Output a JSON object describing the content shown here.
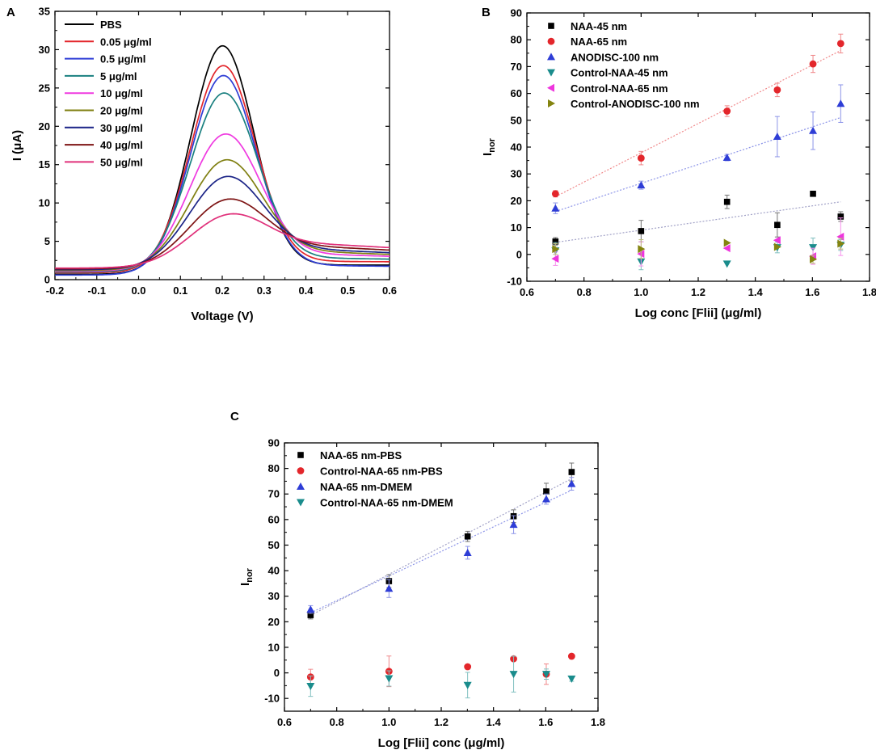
{
  "chart_data": [
    {
      "panel": "A",
      "type": "line",
      "xlabel": "Voltage (V)",
      "ylabel": "I (μA)",
      "xlim": [
        -0.2,
        0.6
      ],
      "ylim": [
        0,
        35
      ],
      "xticks": [
        -0.2,
        -0.1,
        0.0,
        0.1,
        0.2,
        0.3,
        0.4,
        0.5,
        0.6
      ],
      "xtick_labels": [
        "-0.2",
        "-0.1",
        "0.0",
        "0.1",
        "0.2",
        "0.3",
        "0.4",
        "0.5",
        "0.6"
      ],
      "yticks": [
        0,
        5,
        10,
        15,
        20,
        25,
        30,
        35
      ],
      "ytick_labels": [
        "0",
        "5",
        "10",
        "15",
        "20",
        "25",
        "30",
        "35"
      ],
      "legend_position": "top-left",
      "series": [
        {
          "name": "PBS",
          "color": "#000000",
          "peak": 30.5,
          "start": 0.7,
          "end": 1.9
        },
        {
          "name": "0.05 μg/ml",
          "color": "#e3262b",
          "peak": 27.9,
          "start": 0.9,
          "end": 2.3
        },
        {
          "name": "0.5 μg/ml",
          "color": "#2e3dd6",
          "peak": 26.6,
          "start": 0.6,
          "end": 1.7
        },
        {
          "name": "5 μg/ml",
          "color": "#1a8080",
          "peak": 24.3,
          "start": 1.0,
          "end": 2.6
        },
        {
          "name": "10 μg/ml",
          "color": "#ef3ae0",
          "peak": 18.9,
          "start": 1.1,
          "end": 2.9
        },
        {
          "name": "20 μg/ml",
          "color": "#808012",
          "peak": 15.5,
          "start": 1.2,
          "end": 3.1
        },
        {
          "name": "30 μg/ml",
          "color": "#1b2487",
          "peak": 13.3,
          "start": 1.3,
          "end": 3.3
        },
        {
          "name": "40 μg/ml",
          "color": "#7e1414",
          "peak": 10.3,
          "start": 1.4,
          "end": 3.6
        },
        {
          "name": "50 μg/ml",
          "color": "#e0307a",
          "peak": 8.3,
          "start": 1.5,
          "end": 3.9
        }
      ]
    },
    {
      "panel": "B",
      "type": "scatter",
      "xlabel": "Log conc [Flii] (μg/ml)",
      "ylabel": "I",
      "ylabel_sub": "nor",
      "xlim": [
        0.6,
        1.8
      ],
      "ylim": [
        -10,
        90
      ],
      "xticks": [
        0.6,
        0.8,
        1.0,
        1.2,
        1.4,
        1.6,
        1.8
      ],
      "xtick_labels": [
        "0.6",
        "0.8",
        "1.0",
        "1.2",
        "1.4",
        "1.6",
        "1.8"
      ],
      "yticks": [
        -10,
        0,
        10,
        20,
        30,
        40,
        50,
        60,
        70,
        80,
        90
      ],
      "ytick_labels": [
        "-10",
        "0",
        "10",
        "20",
        "30",
        "40",
        "50",
        "60",
        "70",
        "80",
        "90"
      ],
      "legend_position": "top-left",
      "x": [
        0.7,
        1.0,
        1.301,
        1.477,
        1.602,
        1.699
      ],
      "series": [
        {
          "name": "NAA-45 nm",
          "marker": "square",
          "color": "#000000",
          "values": [
            4.8,
            8.7,
            19.6,
            11.0,
            22.6,
            14.1
          ],
          "err": [
            1.5,
            4.0,
            2.5,
            4.5,
            0,
            1.8
          ],
          "fit": [
            4.5,
            19.6
          ]
        },
        {
          "name": "NAA-65 nm",
          "marker": "circle",
          "color": "#e3262b",
          "values": [
            22.6,
            35.9,
            53.4,
            61.3,
            71.0,
            78.6
          ],
          "err": [
            1.2,
            2.5,
            2.0,
            2.5,
            3.2,
            3.5
          ],
          "fit": [
            21.5,
            76.0
          ]
        },
        {
          "name": "ANODISC-100 nm",
          "marker": "triangle-up",
          "color": "#2e3dd6",
          "values": [
            17.2,
            25.8,
            36.1,
            43.9,
            46.1,
            56.2
          ],
          "err": [
            2.0,
            1.5,
            1.2,
            7.5,
            7.0,
            7.0
          ],
          "fit": [
            16.0,
            51.0
          ]
        },
        {
          "name": "Control-NAA-45 nm",
          "marker": "triangle-down",
          "color": "#1a8c8c",
          "values": [
            1.4,
            -2.7,
            -3.5,
            2.6,
            2.6,
            3.5
          ],
          "err": [
            3.0,
            3.0,
            0,
            2.0,
            3.5,
            2.0
          ],
          "fit": null
        },
        {
          "name": "Control-NAA-65 nm",
          "marker": "triangle-left",
          "color": "#ee35dd",
          "values": [
            -1.6,
            0.2,
            2.3,
            5.3,
            -0.7,
            6.6
          ],
          "err": [
            2.5,
            4.5,
            0,
            0,
            3.0,
            7.0
          ],
          "fit": null
        },
        {
          "name": "Control-ANODISC-100 nm",
          "marker": "triangle-right",
          "color": "#848410",
          "values": [
            2.0,
            2.0,
            4.3,
            2.8,
            -1.8,
            4.0
          ],
          "err": [
            2.0,
            3.5,
            0,
            0,
            1.5,
            2.0
          ],
          "fit": null
        }
      ]
    },
    {
      "panel": "C",
      "type": "scatter",
      "xlabel": "Log [Flii] conc (μg/ml)",
      "ylabel": "I",
      "ylabel_sub": "nor",
      "xlim": [
        0.6,
        1.8
      ],
      "ylim": [
        -15,
        90
      ],
      "xticks": [
        0.6,
        0.8,
        1.0,
        1.2,
        1.4,
        1.6,
        1.8
      ],
      "xtick_labels": [
        "0.6",
        "0.8",
        "1.0",
        "1.2",
        "1.4",
        "1.6",
        "1.8"
      ],
      "yticks": [
        -10,
        0,
        10,
        20,
        30,
        40,
        50,
        60,
        70,
        80,
        90
      ],
      "ytick_labels": [
        "-10",
        "0",
        "10",
        "20",
        "30",
        "40",
        "50",
        "60",
        "70",
        "80",
        "90"
      ],
      "legend_position": "top-left",
      "x": [
        0.7,
        1.0,
        1.301,
        1.477,
        1.602,
        1.699
      ],
      "series": [
        {
          "name": "NAA-65 nm-PBS",
          "marker": "square",
          "color": "#000000",
          "values": [
            22.6,
            35.9,
            53.4,
            61.3,
            71.0,
            78.6
          ],
          "err": [
            1.5,
            2.5,
            2.0,
            2.5,
            3.2,
            3.5
          ],
          "fit": [
            22.5,
            76.0
          ]
        },
        {
          "name": "Control-NAA-65 nm-PBS",
          "marker": "circle",
          "color": "#e3262b",
          "values": [
            -1.6,
            0.6,
            2.4,
            5.5,
            -0.5,
            6.5
          ],
          "err": [
            3.0,
            6.0,
            0,
            0,
            4.0,
            0
          ],
          "fit": null
        },
        {
          "name": "NAA-65 nm-DMEM",
          "marker": "triangle-up",
          "color": "#2e3dd6",
          "values": [
            24.8,
            33.0,
            47.0,
            58.0,
            68.0,
            74.0
          ],
          "err": [
            1.5,
            3.5,
            2.5,
            3.5,
            2.0,
            2.5
          ],
          "fit": [
            23.5,
            71.5
          ]
        },
        {
          "name": "Control-NAA-65 nm-DMEM",
          "marker": "triangle-down",
          "color": "#1a8c8c",
          "values": [
            -5.2,
            -2.2,
            -4.8,
            -0.5,
            -0.5,
            -2.3
          ],
          "err": [
            4.0,
            3.0,
            5.0,
            7.0,
            2.0,
            1.0
          ],
          "fit": null
        }
      ]
    }
  ]
}
